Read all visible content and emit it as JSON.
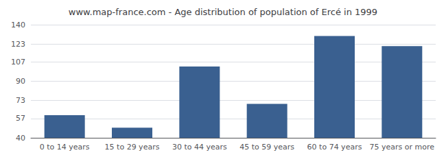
{
  "chart_data": {
    "type": "bar",
    "title": "www.map-france.com - Age distribution of population of Ercé in 1999",
    "categories": [
      "0 to 14 years",
      "15 to 29 years",
      "30 to 44 years",
      "45 to 59 years",
      "60 to 74 years",
      "75 years or more"
    ],
    "values": [
      60,
      49,
      103,
      70,
      130,
      121
    ],
    "color": "#3a6090",
    "ylim": [
      40,
      140
    ],
    "yticks": [
      40,
      57,
      73,
      90,
      107,
      123,
      140
    ],
    "grid": true
  }
}
